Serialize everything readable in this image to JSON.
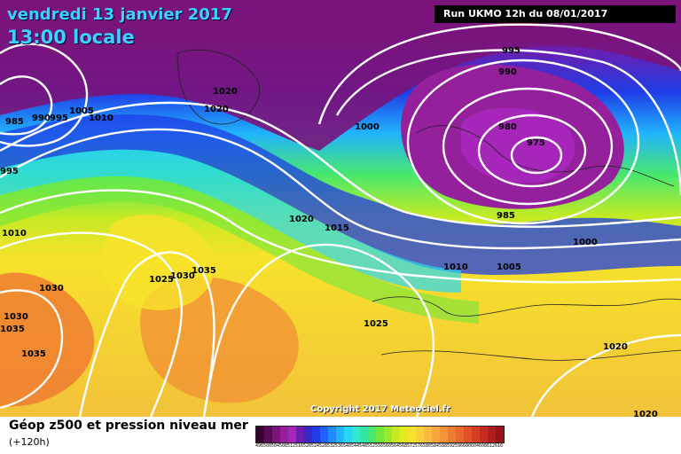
{
  "header": {
    "date": "vendredi 13 janvier 2017",
    "time": "13:00 locale",
    "run": "Run UKMO 12h du 08/01/2017"
  },
  "copyright": "Copyright 2017 Meteociel.fr",
  "footer": {
    "title": "Géop z500 et pression niveau mer",
    "subtitle": "(+120h)"
  },
  "isobar_labels": [
    "995",
    "990",
    "980",
    "975",
    "985",
    "1000",
    "1000",
    "1005",
    "1010",
    "1015",
    "1020",
    "1020",
    "1020",
    "1025",
    "1030",
    "1035",
    "1025",
    "1030",
    "1035",
    "985",
    "990",
    "995",
    "1005",
    "1010",
    "1010",
    "1030",
    "1035",
    "1035",
    "995",
    "1020",
    "1020"
  ],
  "legend": {
    "ticks": [
      "496",
      "500",
      "504",
      "508",
      "512",
      "516",
      "520",
      "524",
      "528",
      "532",
      "536",
      "540",
      "544",
      "548",
      "552",
      "556",
      "560",
      "564",
      "568",
      "572",
      "576",
      "580",
      "584",
      "588",
      "592",
      "596",
      "600",
      "604",
      "608",
      "612",
      "616"
    ],
    "colors": [
      "#3b0033",
      "#5a0a50",
      "#7a147a",
      "#94209c",
      "#a526b8",
      "#6a1fb0",
      "#3a28c8",
      "#1f3ce6",
      "#1c63ff",
      "#1f8cff",
      "#21b4ff",
      "#28d7f5",
      "#2fe8d2",
      "#34e7a0",
      "#48e86c",
      "#70e83c",
      "#9ce82a",
      "#c4ea24",
      "#e4ea22",
      "#f7e22a",
      "#fbcf3a",
      "#f9bb3e",
      "#f6a63c",
      "#f39236",
      "#ef7d30",
      "#ea682b",
      "#e05328",
      "#d43e24",
      "#c42c22",
      "#b01e20",
      "#981418"
    ]
  }
}
